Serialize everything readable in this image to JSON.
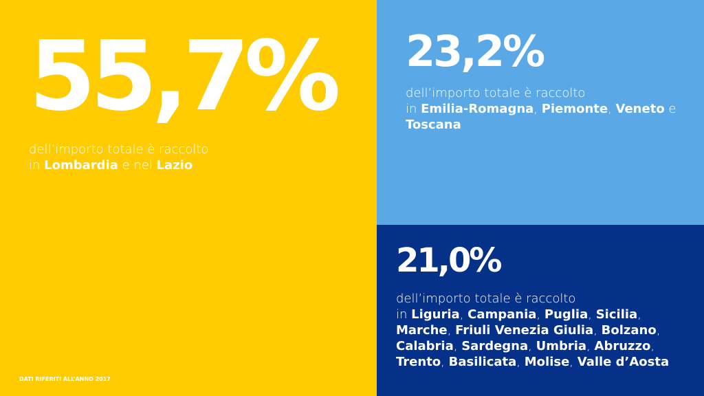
{
  "panels": [
    {
      "value": "55,7%",
      "intro": "dell’importo totale è raccolto",
      "runs": [
        {
          "text": "in "
        },
        {
          "text": "Lombardia",
          "strong": true
        },
        {
          "text": " e nel "
        },
        {
          "text": "Lazio",
          "strong": true
        }
      ]
    },
    {
      "value": "23,2%",
      "intro": "dell’importo totale è raccolto",
      "runs": [
        {
          "text": "in "
        },
        {
          "text": "Emilia-Romagna",
          "strong": true
        },
        {
          "text": ", "
        },
        {
          "text": "Piemonte",
          "strong": true
        },
        {
          "text": ", "
        },
        {
          "text": "Veneto",
          "strong": true
        },
        {
          "text": " e "
        },
        {
          "text": "Toscana",
          "strong": true
        }
      ]
    },
    {
      "value": "21,0%",
      "intro": "dell’importo totale è raccolto",
      "runs": [
        {
          "text": "in "
        },
        {
          "text": "Liguria",
          "strong": true
        },
        {
          "text": ", "
        },
        {
          "text": "Campania",
          "strong": true
        },
        {
          "text": ", "
        },
        {
          "text": "Puglia",
          "strong": true
        },
        {
          "text": ", "
        },
        {
          "text": "Sicilia",
          "strong": true
        },
        {
          "text": ", "
        },
        {
          "text": "Marche",
          "strong": true
        },
        {
          "text": ", "
        },
        {
          "text": "Friuli Venezia Giulia",
          "strong": true
        },
        {
          "text": ", "
        },
        {
          "text": "Bolzano",
          "strong": true
        },
        {
          "text": ", "
        },
        {
          "text": "Calabria",
          "strong": true
        },
        {
          "text": ", "
        },
        {
          "text": "Sardegna",
          "strong": true
        },
        {
          "text": ", "
        },
        {
          "text": "Umbria",
          "strong": true
        },
        {
          "text": ", "
        },
        {
          "text": "Abruzzo",
          "strong": true
        },
        {
          "text": ", "
        },
        {
          "text": "Trento",
          "strong": true
        },
        {
          "text": ", "
        },
        {
          "text": "Basilicata",
          "strong": true
        },
        {
          "text": ", "
        },
        {
          "text": "Molise",
          "strong": true
        },
        {
          "text": ", "
        },
        {
          "text": "Valle d’Aosta",
          "strong": true
        }
      ]
    }
  ],
  "footer": "DATI RIFERITI ALL’ANNO 2017"
}
